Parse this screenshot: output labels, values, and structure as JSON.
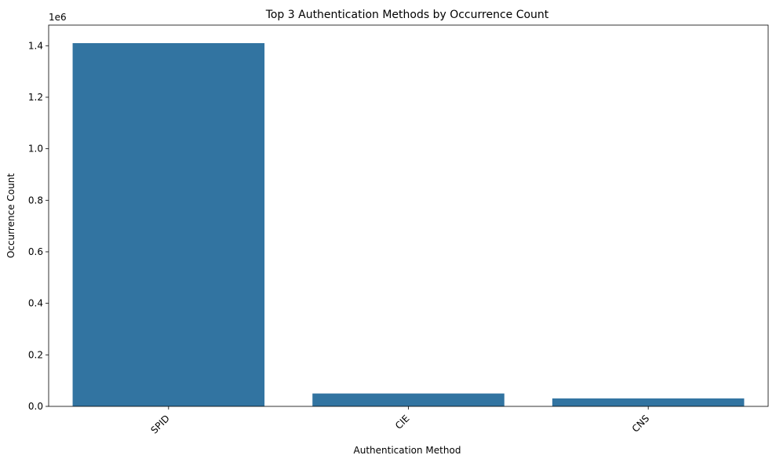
{
  "chart_data": {
    "type": "bar",
    "title": "Top 3 Authentication Methods by Occurrence Count",
    "xlabel": "Authentication Method",
    "ylabel": "Occurrence Count",
    "y_offset_label": "1e6",
    "categories": [
      "SPID",
      "CIE",
      "CNS"
    ],
    "values": [
      1410000,
      50000,
      31000
    ],
    "ylim": [
      0,
      1480000
    ],
    "yticks": [
      0,
      200000,
      400000,
      600000,
      800000,
      1000000,
      1200000,
      1400000
    ],
    "ytick_labels": [
      "0.0",
      "0.2",
      "0.4",
      "0.6",
      "0.8",
      "1.0",
      "1.2",
      "1.4"
    ],
    "x_tick_rotation": -45,
    "grid": false,
    "legend": "none",
    "bar_color": "#3274a1"
  }
}
